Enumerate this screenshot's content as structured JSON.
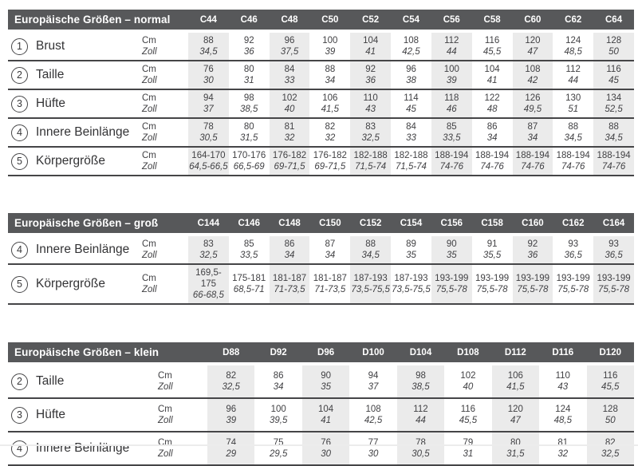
{
  "colors": {
    "header_bar": "#57585a",
    "header_text": "#ffffff",
    "stripe": "#ebebeb",
    "rule": "#454547",
    "body_text": "#414144"
  },
  "units": {
    "cm": "Cm",
    "zoll": "Zoll"
  },
  "tables": [
    {
      "id": "normal",
      "title": "Europäische Größen – normal",
      "columns": [
        "C44",
        "C46",
        "C48",
        "C50",
        "C52",
        "C54",
        "C56",
        "C58",
        "C60",
        "C62",
        "C64"
      ],
      "rows": [
        {
          "num": "1",
          "label": "Brust",
          "cm": [
            "88",
            "92",
            "96",
            "100",
            "104",
            "108",
            "112",
            "116",
            "120",
            "124",
            "128"
          ],
          "zoll": [
            "34,5",
            "36",
            "37,5",
            "39",
            "41",
            "42,5",
            "44",
            "45,5",
            "47",
            "48,5",
            "50"
          ]
        },
        {
          "num": "2",
          "label": "Taille",
          "cm": [
            "76",
            "80",
            "84",
            "88",
            "92",
            "96",
            "100",
            "104",
            "108",
            "112",
            "116"
          ],
          "zoll": [
            "30",
            "31",
            "33",
            "34",
            "36",
            "38",
            "39",
            "41",
            "42",
            "44",
            "45"
          ]
        },
        {
          "num": "3",
          "label": "Hüfte",
          "cm": [
            "94",
            "98",
            "102",
            "106",
            "110",
            "114",
            "118",
            "122",
            "126",
            "130",
            "134"
          ],
          "zoll": [
            "37",
            "38,5",
            "40",
            "41,5",
            "43",
            "45",
            "46",
            "48",
            "49,5",
            "51",
            "52,5"
          ]
        },
        {
          "num": "4",
          "label": "Innere Beinlänge",
          "cm": [
            "78",
            "80",
            "81",
            "82",
            "83",
            "84",
            "85",
            "86",
            "87",
            "88",
            "88"
          ],
          "zoll": [
            "30,5",
            "31,5",
            "32",
            "32",
            "32,5",
            "33",
            "33,5",
            "34",
            "34",
            "34,5",
            "34,5"
          ]
        },
        {
          "num": "5",
          "label": "Körpergröße",
          "cm": [
            "164-170",
            "170-176",
            "176-182",
            "176-182",
            "182-188",
            "182-188",
            "188-194",
            "188-194",
            "188-194",
            "188-194",
            "188-194"
          ],
          "zoll": [
            "64,5-66,5",
            "66,5-69",
            "69-71,5",
            "69-71,5",
            "71,5-74",
            "71,5-74",
            "74-76",
            "74-76",
            "74-76",
            "74-76",
            "74-76"
          ]
        }
      ]
    },
    {
      "id": "gross",
      "title": "Europäische Größen – groß",
      "columns": [
        "C144",
        "C146",
        "C148",
        "C150",
        "C152",
        "C154",
        "C156",
        "C158",
        "C160",
        "C162",
        "C164"
      ],
      "rows": [
        {
          "num": "4",
          "label": "Innere Beinlänge",
          "cm": [
            "83",
            "85",
            "86",
            "87",
            "88",
            "89",
            "90",
            "91",
            "92",
            "93",
            "93"
          ],
          "zoll": [
            "32,5",
            "33,5",
            "34",
            "34",
            "34,5",
            "35",
            "35",
            "35,5",
            "36",
            "36,5",
            "36,5"
          ]
        },
        {
          "num": "5",
          "label": "Körpergröße",
          "cm": [
            "169,5-175",
            "175-181",
            "181-187",
            "181-187",
            "187-193",
            "187-193",
            "193-199",
            "193-199",
            "193-199",
            "193-199",
            "193-199"
          ],
          "zoll": [
            "66-68,5",
            "68,5-71",
            "71-73,5",
            "71-73,5",
            "73,5-75,5",
            "73,5-75,5",
            "75,5-78",
            "75,5-78",
            "75,5-78",
            "75,5-78",
            "75,5-78"
          ]
        }
      ]
    },
    {
      "id": "klein",
      "title": "Europäische Größen – klein",
      "columns": [
        "D88",
        "D92",
        "D96",
        "D100",
        "D104",
        "D108",
        "D112",
        "D116",
        "D120"
      ],
      "rows": [
        {
          "num": "2",
          "label": "Taille",
          "cm": [
            "82",
            "86",
            "90",
            "94",
            "98",
            "102",
            "106",
            "110",
            "116"
          ],
          "zoll": [
            "32,5",
            "34",
            "35",
            "37",
            "38,5",
            "40",
            "41,5",
            "43",
            "45,5"
          ]
        },
        {
          "num": "3",
          "label": "Hüfte",
          "cm": [
            "96",
            "100",
            "104",
            "108",
            "112",
            "116",
            "120",
            "124",
            "128"
          ],
          "zoll": [
            "39",
            "39,5",
            "41",
            "42,5",
            "44",
            "45,5",
            "47",
            "48,5",
            "50"
          ]
        },
        {
          "num": "4",
          "label": "Innere Beinlänge",
          "cm": [
            "74",
            "75",
            "76",
            "77",
            "78",
            "79",
            "80",
            "81",
            "82"
          ],
          "zoll": [
            "29",
            "29,5",
            "30",
            "30",
            "30,5",
            "31",
            "31,5",
            "32",
            "32,5"
          ]
        }
      ]
    }
  ]
}
